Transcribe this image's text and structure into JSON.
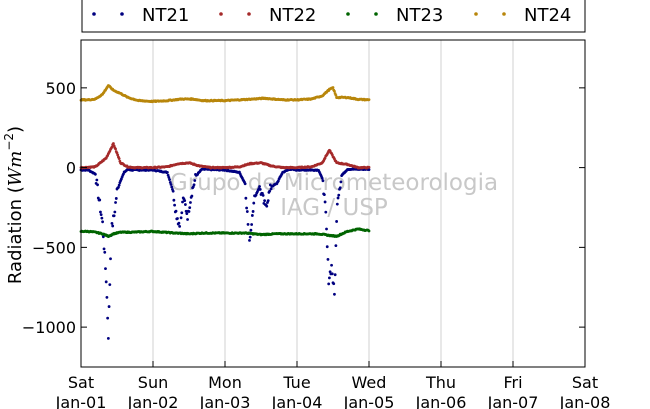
{
  "chart_data": {
    "type": "scatter",
    "title": "",
    "ylabel_text": "Radiation (",
    "ylabel_math": "Wm",
    "ylabel_exp": "−2",
    "ylabel_close": ")",
    "xlabel": "",
    "ylim": [
      -1250,
      800
    ],
    "xlim": [
      0,
      7
    ],
    "grid": true,
    "legend_position": "top",
    "yticks": [
      {
        "value": 500,
        "label": "500"
      },
      {
        "value": 0,
        "label": "0"
      },
      {
        "value": -500,
        "label": "−500"
      },
      {
        "value": -1000,
        "label": "−1000"
      }
    ],
    "xticks": [
      {
        "value": 0,
        "day": "Sat",
        "date": "Jan-01"
      },
      {
        "value": 1,
        "day": "Sun",
        "date": "Jan-02"
      },
      {
        "value": 2,
        "day": "Mon",
        "date": "Jan-03"
      },
      {
        "value": 3,
        "day": "Tue",
        "date": "Jan-04"
      },
      {
        "value": 4,
        "day": "Wed",
        "date": "Jan-05"
      },
      {
        "value": 5,
        "day": "Thu",
        "date": "Jan-06"
      },
      {
        "value": 6,
        "day": "Fri",
        "date": "Jan-07"
      },
      {
        "value": 7,
        "day": "Sat",
        "date": "Jan-08"
      }
    ],
    "watermark": [
      "Grupo de Micrometeorologia",
      "IAG / USP"
    ],
    "series": [
      {
        "name": "NT21",
        "color": "#000080",
        "profile": [
          [
            0.0,
            -15
          ],
          [
            0.1,
            -15
          ],
          [
            0.2,
            -40
          ],
          [
            0.25,
            -200
          ],
          [
            0.3,
            -350
          ],
          [
            0.35,
            -700
          ],
          [
            0.38,
            -1050
          ],
          [
            0.42,
            -400
          ],
          [
            0.46,
            -300
          ],
          [
            0.5,
            -150
          ],
          [
            0.55,
            -80
          ],
          [
            0.6,
            -30
          ],
          [
            0.65,
            -10
          ],
          [
            0.7,
            -15
          ],
          [
            1.0,
            -15
          ],
          [
            1.2,
            -30
          ],
          [
            1.28,
            -150
          ],
          [
            1.32,
            -280
          ],
          [
            1.38,
            -380
          ],
          [
            1.42,
            -180
          ],
          [
            1.48,
            -300
          ],
          [
            1.54,
            -150
          ],
          [
            1.6,
            -50
          ],
          [
            1.68,
            -10
          ],
          [
            2.0,
            -15
          ],
          [
            2.2,
            -30
          ],
          [
            2.28,
            -100
          ],
          [
            2.34,
            -480
          ],
          [
            2.4,
            -200
          ],
          [
            2.48,
            -120
          ],
          [
            2.56,
            -250
          ],
          [
            2.64,
            -120
          ],
          [
            2.72,
            -100
          ],
          [
            2.8,
            -30
          ],
          [
            2.9,
            -10
          ],
          [
            3.0,
            -15
          ],
          [
            3.3,
            -15
          ],
          [
            3.36,
            -80
          ],
          [
            3.4,
            -300
          ],
          [
            3.44,
            -700
          ],
          [
            3.48,
            -620
          ],
          [
            3.52,
            -800
          ],
          [
            3.56,
            -200
          ],
          [
            3.62,
            -50
          ],
          [
            3.7,
            -10
          ],
          [
            4.0,
            -10
          ]
        ]
      },
      {
        "name": "NT22",
        "color": "#a52a2a",
        "profile": [
          [
            0.0,
            0
          ],
          [
            0.2,
            5
          ],
          [
            0.35,
            60
          ],
          [
            0.45,
            150
          ],
          [
            0.55,
            30
          ],
          [
            0.65,
            5
          ],
          [
            0.75,
            0
          ],
          [
            1.0,
            0
          ],
          [
            1.2,
            5
          ],
          [
            1.35,
            25
          ],
          [
            1.5,
            30
          ],
          [
            1.65,
            10
          ],
          [
            1.8,
            0
          ],
          [
            2.0,
            0
          ],
          [
            2.2,
            5
          ],
          [
            2.35,
            25
          ],
          [
            2.5,
            30
          ],
          [
            2.65,
            10
          ],
          [
            2.8,
            0
          ],
          [
            3.0,
            0
          ],
          [
            3.2,
            5
          ],
          [
            3.35,
            30
          ],
          [
            3.45,
            110
          ],
          [
            3.55,
            30
          ],
          [
            3.7,
            20
          ],
          [
            3.85,
            0
          ],
          [
            4.0,
            0
          ]
        ]
      },
      {
        "name": "NT23",
        "color": "#006400",
        "profile": [
          [
            0.0,
            -400
          ],
          [
            0.1,
            -400
          ],
          [
            0.2,
            -405
          ],
          [
            0.3,
            -415
          ],
          [
            0.38,
            -430
          ],
          [
            0.45,
            -415
          ],
          [
            0.55,
            -405
          ],
          [
            0.7,
            -405
          ],
          [
            1.0,
            -400
          ],
          [
            1.3,
            -410
          ],
          [
            1.5,
            -415
          ],
          [
            1.7,
            -410
          ],
          [
            2.0,
            -410
          ],
          [
            2.3,
            -410
          ],
          [
            2.5,
            -420
          ],
          [
            2.7,
            -415
          ],
          [
            3.0,
            -415
          ],
          [
            3.3,
            -415
          ],
          [
            3.45,
            -425
          ],
          [
            3.55,
            -430
          ],
          [
            3.7,
            -400
          ],
          [
            3.85,
            -385
          ],
          [
            4.0,
            -395
          ]
        ]
      },
      {
        "name": "NT24",
        "color": "#b8860b",
        "profile": [
          [
            0.0,
            425
          ],
          [
            0.1,
            425
          ],
          [
            0.2,
            430
          ],
          [
            0.3,
            460
          ],
          [
            0.38,
            515
          ],
          [
            0.45,
            485
          ],
          [
            0.55,
            465
          ],
          [
            0.65,
            440
          ],
          [
            0.8,
            420
          ],
          [
            1.0,
            415
          ],
          [
            1.2,
            420
          ],
          [
            1.4,
            430
          ],
          [
            1.55,
            430
          ],
          [
            1.7,
            420
          ],
          [
            2.0,
            420
          ],
          [
            2.2,
            425
          ],
          [
            2.4,
            430
          ],
          [
            2.55,
            435
          ],
          [
            2.8,
            425
          ],
          [
            3.0,
            425
          ],
          [
            3.2,
            430
          ],
          [
            3.35,
            450
          ],
          [
            3.45,
            490
          ],
          [
            3.5,
            500
          ],
          [
            3.55,
            440
          ],
          [
            3.7,
            440
          ],
          [
            3.85,
            428
          ],
          [
            4.0,
            425
          ]
        ]
      }
    ]
  }
}
